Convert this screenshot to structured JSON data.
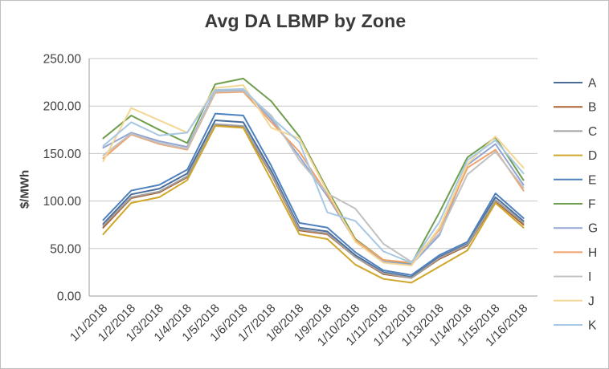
{
  "chart_data": {
    "type": "line",
    "title": "Avg DA LBMP by Zone",
    "ylabel": "$/MWh",
    "xlabel": "",
    "ylim": [
      0,
      250
    ],
    "ytick_step": 50,
    "ytick_labels": [
      "0.00",
      "50.00",
      "100.00",
      "150.00",
      "200.00",
      "250.00"
    ],
    "grid": true,
    "legend_position": "right",
    "categories": [
      "1/1/2018",
      "1/2/2018",
      "1/3/2018",
      "1/4/2018",
      "1/5/2018",
      "1/6/2018",
      "1/7/2018",
      "1/8/2018",
      "1/9/2018",
      "1/10/2018",
      "1/11/2018",
      "1/12/2018",
      "1/13/2018",
      "1/14/2018",
      "1/15/2018",
      "1/16/2018"
    ],
    "series": [
      {
        "name": "A",
        "color": "#4a6d9b",
        "values": [
          76,
          107,
          113,
          129,
          185,
          183,
          132,
          72,
          68,
          43,
          25,
          20,
          41,
          55,
          104,
          79
        ]
      },
      {
        "name": "B",
        "color": "#ac6130",
        "values": [
          72,
          103,
          109,
          125,
          180,
          178,
          128,
          69,
          65,
          41,
          23,
          19,
          39,
          53,
          100,
          75
        ]
      },
      {
        "name": "C",
        "color": "#a1a1a1",
        "values": [
          74,
          104,
          110,
          126,
          181,
          179,
          129,
          70,
          66,
          41,
          24,
          19,
          40,
          54,
          101,
          77
        ]
      },
      {
        "name": "D",
        "color": "#cfa72a",
        "values": [
          65,
          98,
          104,
          122,
          179,
          177,
          122,
          65,
          60,
          33,
          18,
          14,
          31,
          48,
          98,
          72
        ]
      },
      {
        "name": "E",
        "color": "#4e81bd",
        "values": [
          80,
          111,
          117,
          133,
          192,
          190,
          137,
          77,
          72,
          46,
          27,
          22,
          43,
          57,
          108,
          82
        ]
      },
      {
        "name": "F",
        "color": "#6f9e4f",
        "values": [
          166,
          190,
          175,
          161,
          223,
          229,
          205,
          168,
          112,
          60,
          38,
          34,
          88,
          146,
          167,
          122
        ]
      },
      {
        "name": "G",
        "color": "#93a5d3",
        "values": [
          156,
          172,
          163,
          157,
          216,
          217,
          186,
          147,
          105,
          58,
          36,
          33,
          64,
          138,
          160,
          117
        ]
      },
      {
        "name": "H",
        "color": "#f0a169",
        "values": [
          145,
          170,
          160,
          154,
          214,
          215,
          183,
          152,
          107,
          59,
          38,
          35,
          70,
          135,
          154,
          111
        ]
      },
      {
        "name": "I",
        "color": "#c1c1c1",
        "values": [
          148,
          171,
          161,
          155,
          215,
          216,
          190,
          143,
          108,
          92,
          55,
          36,
          66,
          128,
          152,
          114
        ]
      },
      {
        "name": "J",
        "color": "#f5d795",
        "values": [
          142,
          198,
          185,
          172,
          219,
          222,
          177,
          166,
          110,
          57,
          35,
          32,
          72,
          139,
          168,
          135
        ]
      },
      {
        "name": "K",
        "color": "#a7c7e3",
        "values": [
          158,
          183,
          169,
          172,
          217,
          218,
          188,
          162,
          88,
          79,
          47,
          35,
          78,
          143,
          164,
          129
        ]
      }
    ],
    "styles": {
      "gridline_color": "#c6c6c6",
      "axis_color": "#9b9b9b",
      "tick_label_color": "#3f3f3f",
      "title_color": "#3a3a3a"
    }
  }
}
